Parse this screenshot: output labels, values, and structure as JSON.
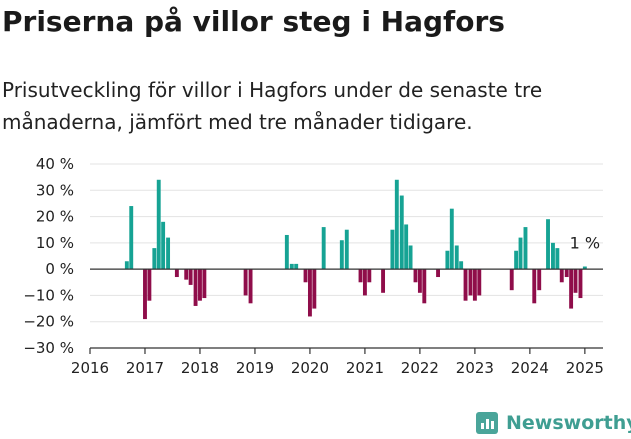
{
  "title": "Priserna på villor steg i Hagfors",
  "subtitle": "Prisutveckling för villor i Hagfors under de senaste tre månaderna, jämfört med tre månader tidigare.",
  "brand": {
    "name": "Newsworthy",
    "icon": "newsworthy-logo-icon"
  },
  "colors": {
    "positive": "#16a394",
    "negative": "#8f0d4a",
    "axis": "#333333",
    "grid": "#e3e3e3",
    "text": "#222222"
  },
  "chart_data": {
    "type": "bar",
    "title": "Priserna på villor steg i Hagfors",
    "subtitle": "Prisutveckling för villor i Hagfors under de senaste tre månaderna, jämfört med tre månader tidigare.",
    "xlabel": "",
    "ylabel": "",
    "y_unit": "%",
    "ylim": [
      -30,
      40
    ],
    "y_ticks": [
      -30,
      -20,
      -10,
      0,
      10,
      20,
      30,
      40
    ],
    "y_tick_labels": [
      "−30 %",
      "−20 %",
      "−10 %",
      "0 %",
      "10 %",
      "20 %",
      "30 %",
      "40 %"
    ],
    "x_range": [
      2016.0,
      2025.33
    ],
    "x_ticks": [
      2016,
      2017,
      2018,
      2019,
      2020,
      2021,
      2022,
      2023,
      2024,
      2025
    ],
    "x_tick_labels": [
      "2016",
      "2017",
      "2018",
      "2019",
      "2020",
      "2021",
      "2022",
      "2023",
      "2024",
      "2025"
    ],
    "grid": true,
    "legend": "none",
    "annotation": {
      "text": "1 %",
      "x": 2025.0,
      "value": 1
    },
    "points": [
      {
        "x": 2016.67,
        "value": 3
      },
      {
        "x": 2016.75,
        "value": 24
      },
      {
        "x": 2017.0,
        "value": -19
      },
      {
        "x": 2017.08,
        "value": -12
      },
      {
        "x": 2017.17,
        "value": 8
      },
      {
        "x": 2017.25,
        "value": 34
      },
      {
        "x": 2017.33,
        "value": 18
      },
      {
        "x": 2017.42,
        "value": 12
      },
      {
        "x": 2017.58,
        "value": -3
      },
      {
        "x": 2017.75,
        "value": -4
      },
      {
        "x": 2017.83,
        "value": -6
      },
      {
        "x": 2017.92,
        "value": -14
      },
      {
        "x": 2018.0,
        "value": -12
      },
      {
        "x": 2018.08,
        "value": -11
      },
      {
        "x": 2018.83,
        "value": -10
      },
      {
        "x": 2018.92,
        "value": -13
      },
      {
        "x": 2019.58,
        "value": 13
      },
      {
        "x": 2019.67,
        "value": 2
      },
      {
        "x": 2019.75,
        "value": 2
      },
      {
        "x": 2019.92,
        "value": -5
      },
      {
        "x": 2020.0,
        "value": -18
      },
      {
        "x": 2020.08,
        "value": -15
      },
      {
        "x": 2020.25,
        "value": 16
      },
      {
        "x": 2020.58,
        "value": 11
      },
      {
        "x": 2020.67,
        "value": 15
      },
      {
        "x": 2020.92,
        "value": -5
      },
      {
        "x": 2021.0,
        "value": -10
      },
      {
        "x": 2021.08,
        "value": -5
      },
      {
        "x": 2021.33,
        "value": -9
      },
      {
        "x": 2021.5,
        "value": 15
      },
      {
        "x": 2021.58,
        "value": 34
      },
      {
        "x": 2021.67,
        "value": 28
      },
      {
        "x": 2021.75,
        "value": 17
      },
      {
        "x": 2021.83,
        "value": 9
      },
      {
        "x": 2021.92,
        "value": -5
      },
      {
        "x": 2022.0,
        "value": -9
      },
      {
        "x": 2022.08,
        "value": -13
      },
      {
        "x": 2022.33,
        "value": -3
      },
      {
        "x": 2022.5,
        "value": 7
      },
      {
        "x": 2022.58,
        "value": 23
      },
      {
        "x": 2022.67,
        "value": 9
      },
      {
        "x": 2022.75,
        "value": 3
      },
      {
        "x": 2022.83,
        "value": -12
      },
      {
        "x": 2022.92,
        "value": -10
      },
      {
        "x": 2023.0,
        "value": -12
      },
      {
        "x": 2023.08,
        "value": -10
      },
      {
        "x": 2023.67,
        "value": -8
      },
      {
        "x": 2023.75,
        "value": 7
      },
      {
        "x": 2023.83,
        "value": 12
      },
      {
        "x": 2023.92,
        "value": 16
      },
      {
        "x": 2024.08,
        "value": -13
      },
      {
        "x": 2024.17,
        "value": -8
      },
      {
        "x": 2024.33,
        "value": 19
      },
      {
        "x": 2024.42,
        "value": 10
      },
      {
        "x": 2024.5,
        "value": 8
      },
      {
        "x": 2024.58,
        "value": -5
      },
      {
        "x": 2024.67,
        "value": -3
      },
      {
        "x": 2024.75,
        "value": -15
      },
      {
        "x": 2024.83,
        "value": -9
      },
      {
        "x": 2024.92,
        "value": -11
      },
      {
        "x": 2025.0,
        "value": 1
      }
    ]
  }
}
